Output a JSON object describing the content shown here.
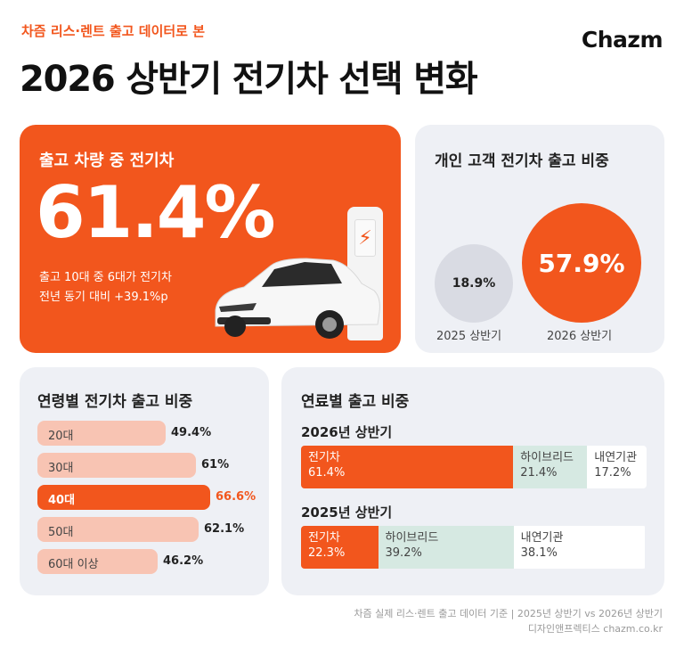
{
  "header": {
    "kicker": "차즘 리스·렌트 출고 데이터로 본",
    "brand": "Chazm",
    "title": "2026 상반기 전기차 선택 변화"
  },
  "ev_share": {
    "label": "출고 차량 중 전기차",
    "value": "61.4%",
    "note1": "출고 10대 중 6대가 전기차",
    "note2": "전년 동기 대비 +39.1%p",
    "charger_symbol": "⚡"
  },
  "personal": {
    "title": "개인 고객 전기차 출고 비중",
    "prev_value": "18.9%",
    "prev_label": "2025 상반기",
    "curr_value": "57.9%",
    "curr_label": "2026 상반기"
  },
  "age": {
    "title": "연령별 전기차 출고 비중",
    "rows": [
      {
        "name": "20대",
        "value": "49.4%",
        "pct": 49.4
      },
      {
        "name": "30대",
        "value": "61%",
        "pct": 61
      },
      {
        "name": "40대",
        "value": "66.6%",
        "pct": 66.6
      },
      {
        "name": "50대",
        "value": "62.1%",
        "pct": 62.1
      },
      {
        "name": "60대 이상",
        "value": "46.2%",
        "pct": 46.2
      }
    ]
  },
  "fuel": {
    "title": "연료별 출고 비중",
    "y2026": {
      "label": "2026년 상반기",
      "segments": [
        {
          "name": "전기차",
          "value": "61.4%",
          "pct": 61.4
        },
        {
          "name": "하이브리드",
          "value": "21.4%",
          "pct": 21.4
        },
        {
          "name": "내연기관",
          "value": "17.2%",
          "pct": 17.2
        }
      ]
    },
    "y2025": {
      "label": "2025년 상반기",
      "segments": [
        {
          "name": "전기차",
          "value": "22.3%",
          "pct": 22.3
        },
        {
          "name": "하이브리드",
          "value": "39.2%",
          "pct": 39.2
        },
        {
          "name": "내연기관",
          "value": "38.1%",
          "pct": 38.1
        }
      ]
    }
  },
  "footer": {
    "line1": "차즘 실제 리스·렌트 출고 데이터 기준 | 2025년 상반기 vs 2026년 상반기",
    "line2": "디자인앤프렉티스 chazm.co.kr"
  },
  "colors": {
    "accent": "#f2561d",
    "card_gray": "#eef0f5",
    "age_bar": "#f8c4b3",
    "hybrid": "#d6e9e2"
  }
}
